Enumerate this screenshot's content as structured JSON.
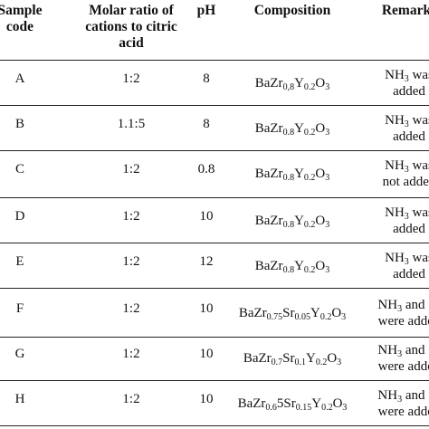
{
  "table": {
    "header": [
      [
        "Sample",
        "code"
      ],
      [
        "Molar ratio of",
        "cations to citric",
        "acid"
      ],
      [
        "pH"
      ],
      [
        "Composition"
      ],
      [
        "Remarks"
      ]
    ],
    "rows": [
      [
        "A",
        "1:2",
        8,
        [
          [
            "BaZr",
            "0,8",
            "Y",
            "0.2",
            "O",
            "3"
          ]
        ],
        [
          [
            "NH",
            "3",
            " was"
          ],
          [
            "added"
          ]
        ]
      ],
      [
        "B",
        "1.1:5",
        8,
        [
          [
            "BaZr",
            "0.8",
            "Y",
            "0.2",
            "O",
            "3"
          ]
        ],
        [
          [
            "NH",
            "3",
            " was"
          ],
          [
            "added"
          ]
        ]
      ],
      [
        "C",
        "1:2",
        0.8,
        [
          [
            "BaZr",
            "0.8",
            "Y",
            "0.2",
            "O",
            "3"
          ]
        ],
        [
          [
            "NH",
            "3",
            " was"
          ],
          [
            "not added"
          ]
        ]
      ],
      [
        "D",
        "1:2",
        10,
        [
          [
            "BaZr",
            "0.8",
            "Y",
            "0.2",
            "O",
            "3"
          ]
        ],
        [
          [
            "NH",
            "3",
            " was"
          ],
          [
            "added"
          ]
        ]
      ],
      [
        "E",
        "1:2",
        12,
        [
          [
            "BaZr",
            "0.8",
            "Y",
            "0.2",
            "O",
            "3"
          ]
        ],
        [
          [
            "NH",
            "3",
            " was"
          ],
          [
            "added"
          ]
        ]
      ],
      [
        "F",
        "1:2",
        10,
        [
          [
            "BaZr",
            "0.75",
            "Sr",
            "0.05",
            "Y",
            "0.2",
            "O",
            "3"
          ]
        ],
        [
          [
            "NH",
            "3",
            " and Sr"
          ],
          [
            "were added"
          ]
        ]
      ],
      [
        "G",
        "1:2",
        10,
        [
          [
            "BaZr",
            "0.7",
            "Sr",
            "0.1",
            "Y",
            "0.2",
            "O",
            "3"
          ]
        ],
        [
          [
            "NH",
            "3",
            " and Sr"
          ],
          [
            "were added"
          ]
        ]
      ],
      [
        "H",
        "1:2",
        10,
        [
          [
            "BaZr",
            "0.6",
            "5Sr",
            "0.15",
            "Y",
            "0.2",
            "O",
            "3"
          ]
        ],
        [
          [
            "NH",
            "3",
            " and Sr"
          ],
          [
            "were added"
          ]
        ]
      ]
    ]
  }
}
